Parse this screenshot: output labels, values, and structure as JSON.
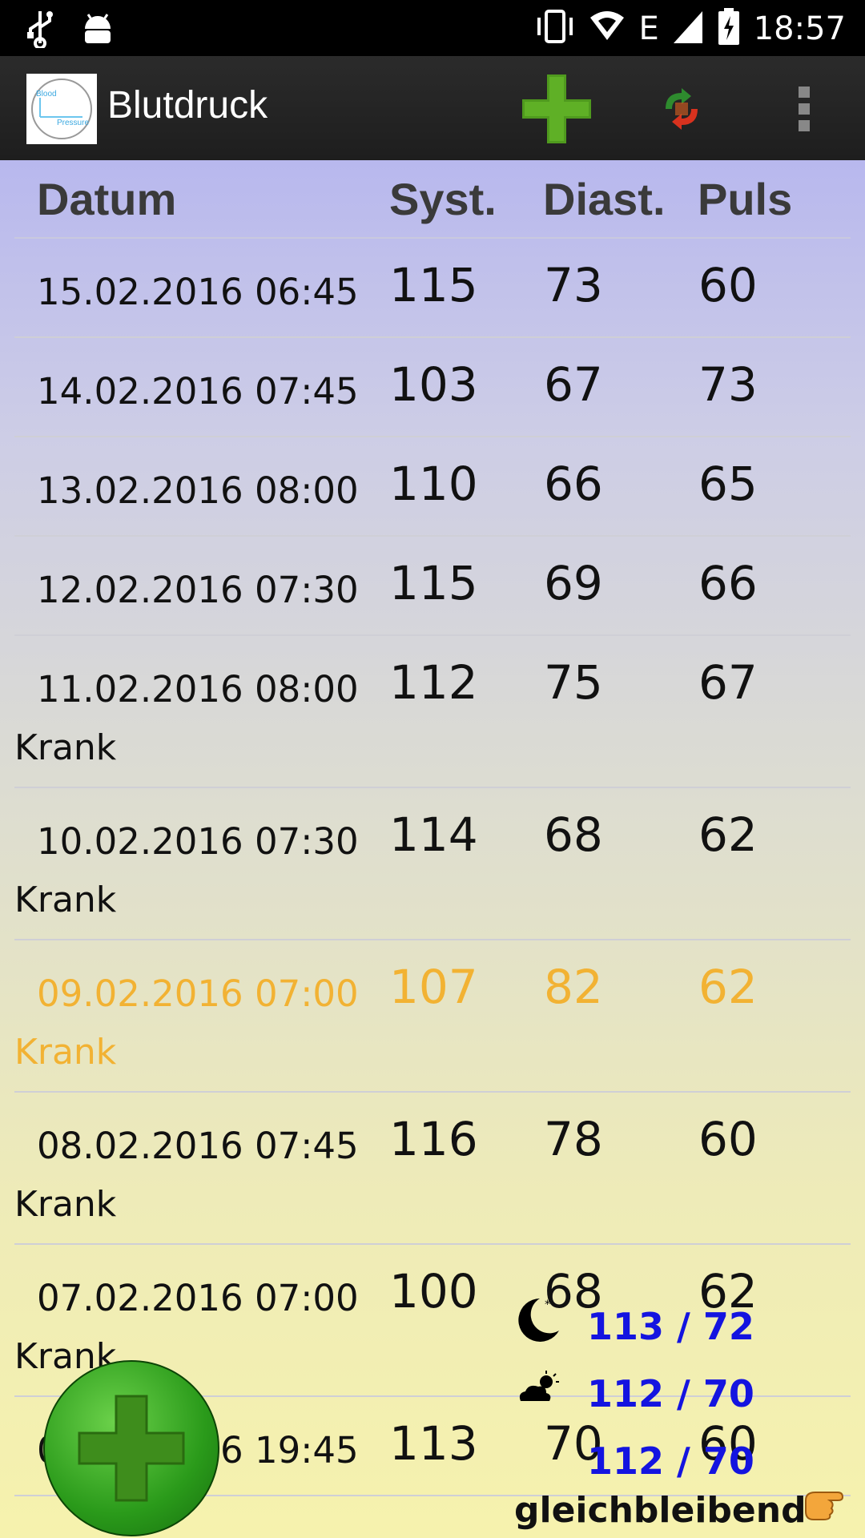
{
  "status_bar": {
    "time": "18:57",
    "network_letter": "E",
    "icons": [
      "usb-icon",
      "android-icon",
      "vibrate-icon",
      "wifi-icon",
      "signal-icon",
      "battery-charging-icon"
    ]
  },
  "action_bar": {
    "title": "Blutdruck",
    "logo_line1": "Blood",
    "logo_line2": "Pressure",
    "icons": [
      "add-icon",
      "sync-icon",
      "overflow-menu-icon"
    ]
  },
  "table": {
    "headers": {
      "date": "Datum",
      "sys": "Syst.",
      "dia": "Diast.",
      "pulse": "Puls"
    },
    "rows": [
      {
        "date": "15.02.2016 06:45",
        "sys": "115",
        "dia": "73",
        "pulse": "60",
        "note": ""
      },
      {
        "date": "14.02.2016 07:45",
        "sys": "103",
        "dia": "67",
        "pulse": "73",
        "note": ""
      },
      {
        "date": "13.02.2016 08:00",
        "sys": "110",
        "dia": "66",
        "pulse": "65",
        "note": ""
      },
      {
        "date": "12.02.2016 07:30",
        "sys": "115",
        "dia": "69",
        "pulse": "66",
        "note": ""
      },
      {
        "date": "11.02.2016 08:00",
        "sys": "112",
        "dia": "75",
        "pulse": "67",
        "note": "Krank"
      },
      {
        "date": "10.02.2016 07:30",
        "sys": "114",
        "dia": "68",
        "pulse": "62",
        "note": "Krank"
      },
      {
        "date": "09.02.2016 07:00",
        "sys": "107",
        "dia": "82",
        "pulse": "62",
        "note": "Krank"
      },
      {
        "date": "08.02.2016 07:45",
        "sys": "116",
        "dia": "78",
        "pulse": "60",
        "note": "Krank"
      },
      {
        "date": "07.02.2016 07:00",
        "sys": "100",
        "dia": "68",
        "pulse": "62",
        "note": "Krank"
      },
      {
        "date": "06.02.2016 19:45",
        "sys": "113",
        "dia": "70",
        "pulse": "60",
        "note": ""
      }
    ]
  },
  "summary": {
    "night_avg": "113 / 72",
    "day_avg": "112 / 70",
    "total_avg": "112 / 70",
    "trend": "gleichbleibend"
  },
  "colors": {
    "highlight": "#f2b233",
    "summary_text": "#1414e0"
  }
}
